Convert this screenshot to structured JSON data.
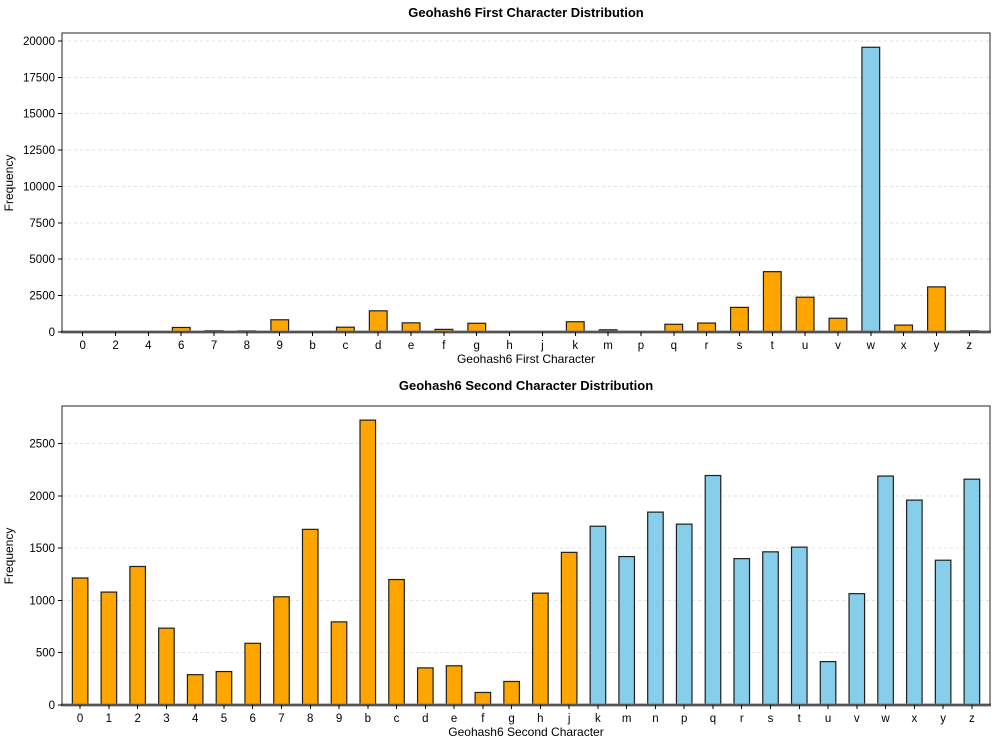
{
  "figure": {
    "background": "#ffffff",
    "grid_color": "#e2e2e2",
    "spine_color": "#262626",
    "baseline_color": "#808080"
  },
  "chart_data": [
    {
      "type": "bar",
      "title": "Geohash6 First Character Distribution",
      "xlabel": "Geohash6 First Character",
      "ylabel": "Frequency",
      "categories": [
        "0",
        "2",
        "4",
        "6",
        "7",
        "8",
        "9",
        "b",
        "c",
        "d",
        "e",
        "f",
        "g",
        "h",
        "j",
        "k",
        "m",
        "p",
        "q",
        "r",
        "s",
        "t",
        "u",
        "v",
        "w",
        "x",
        "y",
        "z"
      ],
      "values": [
        15,
        30,
        15,
        310,
        90,
        80,
        840,
        35,
        330,
        1455,
        630,
        180,
        600,
        15,
        45,
        705,
        150,
        35,
        530,
        615,
        1690,
        4145,
        2390,
        945,
        19560,
        475,
        3100,
        85
      ],
      "bar_color": "#FFA500",
      "highlight_color": "#87CEEB",
      "highlight_categories": [
        "w"
      ],
      "edge_color": "#1f1f1f",
      "yticks": [
        0,
        2500,
        5000,
        7500,
        10000,
        12500,
        15000,
        17500,
        20000
      ],
      "ylim": [
        0,
        20540
      ],
      "grid": "horizontal-dashed",
      "legend": "none"
    },
    {
      "type": "bar",
      "title": "Geohash6 Second Character Distribution",
      "xlabel": "Geohash6 Second Character",
      "ylabel": "Frequency",
      "categories": [
        "0",
        "1",
        "2",
        "3",
        "4",
        "5",
        "6",
        "7",
        "8",
        "9",
        "b",
        "c",
        "d",
        "e",
        "f",
        "g",
        "h",
        "j",
        "k",
        "m",
        "n",
        "p",
        "q",
        "r",
        "s",
        "t",
        "u",
        "v",
        "w",
        "x",
        "y",
        "z"
      ],
      "values": [
        1215,
        1080,
        1325,
        735,
        290,
        320,
        590,
        1035,
        1680,
        795,
        2725,
        1200,
        355,
        375,
        120,
        225,
        1070,
        1460,
        1710,
        1420,
        1845,
        1730,
        2195,
        1400,
        1465,
        1510,
        415,
        1065,
        2190,
        1960,
        1385,
        2160
      ],
      "bar_color": "#FFA500",
      "highlight_color": "#87CEEB",
      "highlight_categories": [
        "k",
        "m",
        "n",
        "p",
        "q",
        "r",
        "s",
        "t",
        "u",
        "v",
        "w",
        "x",
        "y",
        "z"
      ],
      "edge_color": "#1f1f1f",
      "yticks": [
        0,
        500,
        1000,
        1500,
        2000,
        2500
      ],
      "ylim": [
        0,
        2860
      ],
      "grid": "horizontal-dashed",
      "legend": "none"
    }
  ]
}
